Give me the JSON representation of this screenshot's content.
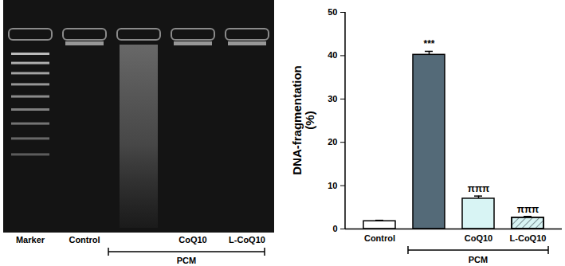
{
  "gel": {
    "lanes": [
      "Marker",
      "Control",
      null,
      "CoQ10",
      "L-CoQ10"
    ],
    "group": {
      "label": "PCM",
      "from": 2,
      "to": 4
    }
  },
  "chart_data": {
    "type": "bar",
    "y_label": "DNA-fragmentation\n(%)",
    "categories": [
      "Control",
      null,
      "CoQ10",
      "L-CoQ10"
    ],
    "values": [
      1.8,
      40.2,
      7.0,
      2.6
    ],
    "errors": [
      0.2,
      0.8,
      0.6,
      0.3
    ],
    "significance": [
      null,
      "***",
      "πππ",
      "πππ"
    ],
    "colors": [
      "#ffffff",
      "#546a78",
      "#d8f4f4",
      "#d8f4f4"
    ],
    "group": {
      "label": "PCM",
      "from": 1,
      "to": 3
    },
    "ylim": [
      0,
      50
    ],
    "yticks": [
      0,
      10,
      20,
      30,
      40,
      50
    ],
    "grid": false
  }
}
